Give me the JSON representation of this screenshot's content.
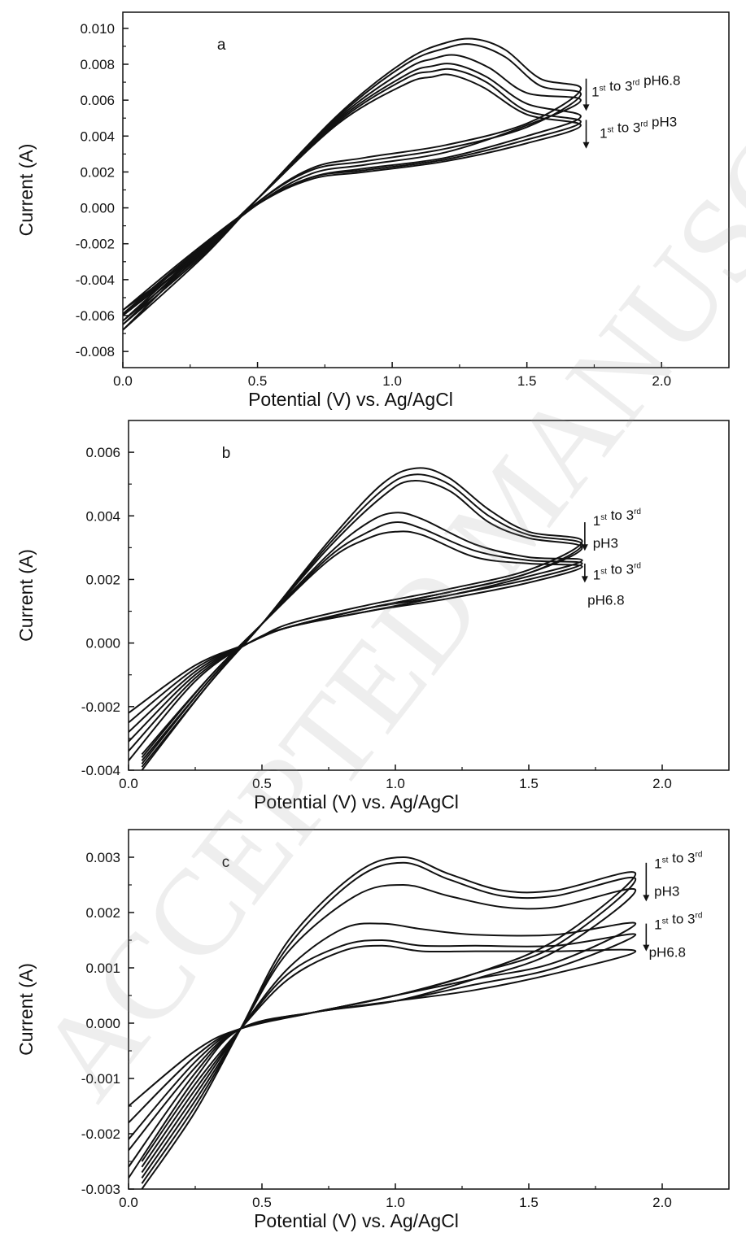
{
  "watermark": "ACCEPTED MANUSCRIPT",
  "chart_data": [
    {
      "type": "line",
      "panel_label": "a",
      "xlabel": "Potential (V) vs. Ag/AgCl",
      "ylabel": "Current (A)",
      "xlim": [
        0.0,
        2.25
      ],
      "ylim": [
        -0.0089,
        0.0109
      ],
      "xticks": [
        0.0,
        0.5,
        1.0,
        1.5,
        2.0
      ],
      "xtick_labels": [
        "0.0",
        "0.5",
        "1.0",
        "1.5",
        "2.0"
      ],
      "yticks": [
        -0.008,
        -0.006,
        -0.004,
        -0.002,
        0.0,
        0.002,
        0.004,
        0.006,
        0.008,
        0.01
      ],
      "ytick_labels": [
        "-0.008",
        "-0.006",
        "-0.004",
        "-0.002",
        "0.000",
        "0.002",
        "0.004",
        "0.006",
        "0.008",
        "0.010"
      ],
      "grid": false,
      "annotations": [
        {
          "pre": "1",
          "sup1": "st",
          "mid": " to 3",
          "sup2": "rd",
          "post": " pH6.8",
          "x": 1.74,
          "y": 0.0062
        },
        {
          "pre": "1",
          "sup1": "st",
          "mid": " to 3",
          "sup2": "rd",
          "post": " pH3",
          "x": 1.77,
          "y": 0.0039
        }
      ],
      "arrows": [
        {
          "x": 1.72,
          "y_from": 0.0072,
          "y_to": 0.0054
        },
        {
          "x": 1.72,
          "y_from": 0.0049,
          "y_to": 0.0033
        }
      ],
      "series": [
        {
          "x": [
            0.0,
            0.3,
            0.5,
            0.8,
            1.05,
            1.2,
            1.31,
            1.42,
            1.55,
            1.7,
            1.5,
            1.2,
            0.9,
            0.7,
            0.5,
            0.25,
            0.0
          ],
          "y": [
            -0.0068,
            -0.0027,
            0.0005,
            0.0052,
            0.0082,
            0.0092,
            0.0094,
            0.0088,
            0.0072,
            0.0066,
            0.0047,
            0.0035,
            0.0028,
            0.0022,
            0.0003,
            -0.0031,
            -0.0068
          ]
        },
        {
          "x": [
            0.0,
            0.3,
            0.5,
            0.8,
            1.05,
            1.2,
            1.3,
            1.42,
            1.55,
            1.7,
            1.5,
            1.2,
            0.9,
            0.7,
            0.5,
            0.25,
            0.0
          ],
          "y": [
            -0.0065,
            -0.0026,
            0.0005,
            0.0051,
            0.008,
            0.0089,
            0.0091,
            0.0084,
            0.0068,
            0.0063,
            0.0045,
            0.0033,
            0.0026,
            0.0021,
            0.0003,
            -0.003,
            -0.0065
          ]
        },
        {
          "x": [
            0.0,
            0.3,
            0.5,
            0.8,
            1.05,
            1.15,
            1.24,
            1.36,
            1.5,
            1.7,
            1.5,
            1.2,
            0.9,
            0.7,
            0.5,
            0.25,
            0.0
          ],
          "y": [
            -0.0063,
            -0.0025,
            0.0005,
            0.005,
            0.0077,
            0.0083,
            0.0085,
            0.0078,
            0.0064,
            0.006,
            0.0046,
            0.0031,
            0.0024,
            0.0019,
            0.0002,
            -0.0029,
            -0.0063
          ]
        },
        {
          "x": [
            0.0,
            0.3,
            0.5,
            0.8,
            1.05,
            1.15,
            1.23,
            1.35,
            1.5,
            1.7,
            1.5,
            1.2,
            0.9,
            0.7,
            0.5,
            0.25,
            0.0
          ],
          "y": [
            -0.006,
            -0.0024,
            0.0005,
            0.0049,
            0.0074,
            0.0079,
            0.008,
            0.0073,
            0.0058,
            0.0051,
            0.004,
            0.0028,
            0.0022,
            0.0017,
            0.0002,
            -0.0028,
            -0.006
          ]
        },
        {
          "x": [
            0.0,
            0.3,
            0.5,
            0.8,
            1.05,
            1.15,
            1.23,
            1.35,
            1.5,
            1.7,
            1.5,
            1.2,
            0.9,
            0.7,
            0.5,
            0.25,
            0.0
          ],
          "y": [
            -0.0059,
            -0.0024,
            0.0005,
            0.0048,
            0.0072,
            0.0076,
            0.0077,
            0.007,
            0.0054,
            0.0048,
            0.0038,
            0.0027,
            0.0021,
            0.0017,
            0.0002,
            -0.0027,
            -0.0059
          ]
        },
        {
          "x": [
            0.0,
            0.3,
            0.5,
            0.8,
            1.05,
            1.15,
            1.22,
            1.34,
            1.5,
            1.7,
            1.5,
            1.2,
            0.9,
            0.7,
            0.5,
            0.25,
            0.0
          ],
          "y": [
            -0.0057,
            -0.0023,
            0.0005,
            0.0047,
            0.0069,
            0.0073,
            0.0074,
            0.0067,
            0.0052,
            0.0046,
            0.0036,
            0.0026,
            0.002,
            0.0016,
            0.0002,
            -0.0026,
            -0.0057
          ]
        }
      ]
    },
    {
      "type": "line",
      "panel_label": "b",
      "xlabel": "Potential (V) vs. Ag/AgCl",
      "ylabel": "Current (A)",
      "xlim": [
        0.0,
        2.25
      ],
      "ylim": [
        -0.004,
        0.007
      ],
      "xticks": [
        0.0,
        0.5,
        1.0,
        1.5,
        2.0
      ],
      "xtick_labels": [
        "0.0",
        "0.5",
        "1.0",
        "1.5",
        "2.0"
      ],
      "yticks": [
        -0.004,
        -0.002,
        0.0,
        0.002,
        0.004,
        0.006
      ],
      "ytick_labels": [
        "-0.004",
        "-0.002",
        "0.000",
        "0.002",
        "0.004",
        "0.006"
      ],
      "grid": false,
      "annotations": [
        {
          "pre": "1",
          "sup1": "st",
          "mid": " to 3",
          "sup2": "rd",
          "post": "",
          "x": 1.74,
          "y": 0.0037
        },
        {
          "pre": "pH3",
          "sup1": "",
          "mid": "",
          "sup2": "",
          "post": "",
          "x": 1.74,
          "y": 0.003
        },
        {
          "pre": "1",
          "sup1": "st",
          "mid": " to 3",
          "sup2": "rd",
          "post": "",
          "x": 1.74,
          "y": 0.002
        },
        {
          "pre": "pH6.8",
          "sup1": "",
          "mid": "",
          "sup2": "",
          "post": "",
          "x": 1.72,
          "y": 0.0012
        }
      ],
      "arrows": [
        {
          "x": 1.71,
          "y_from": 0.0038,
          "y_to": 0.0029
        },
        {
          "x": 1.71,
          "y_from": 0.0025,
          "y_to": 0.0019
        }
      ],
      "series": [
        {
          "x": [
            0.05,
            0.3,
            0.5,
            0.75,
            0.95,
            1.08,
            1.2,
            1.35,
            1.5,
            1.7,
            1.5,
            1.2,
            0.9,
            0.6,
            0.45,
            0.25,
            0.0
          ],
          "y": [
            -0.004,
            -0.0013,
            0.0006,
            0.0032,
            0.005,
            0.0055,
            0.0052,
            0.0042,
            0.0035,
            0.0032,
            0.0023,
            0.0017,
            0.0012,
            0.0006,
            0.0,
            -0.0007,
            -0.0022
          ]
        },
        {
          "x": [
            0.05,
            0.3,
            0.5,
            0.75,
            0.95,
            1.07,
            1.2,
            1.35,
            1.5,
            1.7,
            1.5,
            1.2,
            0.9,
            0.6,
            0.45,
            0.25,
            0.0
          ],
          "y": [
            -0.0039,
            -0.0013,
            0.0006,
            0.0031,
            0.0048,
            0.0053,
            0.005,
            0.004,
            0.0034,
            0.0031,
            0.0022,
            0.0016,
            0.0011,
            0.0005,
            0.0,
            -0.0008,
            -0.0025
          ]
        },
        {
          "x": [
            0.05,
            0.3,
            0.5,
            0.75,
            0.95,
            1.06,
            1.2,
            1.35,
            1.5,
            1.7,
            1.5,
            1.2,
            0.9,
            0.6,
            0.45,
            0.25,
            0.0
          ],
          "y": [
            -0.0038,
            -0.0012,
            0.0006,
            0.003,
            0.0046,
            0.0051,
            0.0048,
            0.0038,
            0.0033,
            0.003,
            0.0022,
            0.0016,
            0.0011,
            0.0005,
            0.0,
            -0.0009,
            -0.0028
          ]
        },
        {
          "x": [
            0.05,
            0.3,
            0.5,
            0.75,
            0.9,
            1.0,
            1.1,
            1.3,
            1.5,
            1.7,
            1.5,
            1.2,
            0.9,
            0.6,
            0.45,
            0.25,
            0.0
          ],
          "y": [
            -0.0037,
            -0.0012,
            0.0006,
            0.0028,
            0.0038,
            0.0041,
            0.0039,
            0.0031,
            0.0027,
            0.0026,
            0.0021,
            0.0015,
            0.0011,
            0.0005,
            0.0,
            -0.001,
            -0.0031
          ]
        },
        {
          "x": [
            0.05,
            0.3,
            0.5,
            0.75,
            0.9,
            1.0,
            1.1,
            1.3,
            1.5,
            1.7,
            1.5,
            1.2,
            0.9,
            0.6,
            0.45,
            0.25,
            0.0
          ],
          "y": [
            -0.0036,
            -0.0011,
            0.0006,
            0.0027,
            0.0035,
            0.0038,
            0.0036,
            0.0029,
            0.0026,
            0.0025,
            0.002,
            0.0015,
            0.001,
            0.0005,
            0.0,
            -0.0011,
            -0.0034
          ]
        },
        {
          "x": [
            0.05,
            0.3,
            0.5,
            0.75,
            0.9,
            1.0,
            1.1,
            1.3,
            1.5,
            1.7,
            1.5,
            1.2,
            0.9,
            0.6,
            0.45,
            0.25,
            0.0
          ],
          "y": [
            -0.0035,
            -0.0011,
            0.0006,
            0.0026,
            0.0033,
            0.0035,
            0.0034,
            0.0027,
            0.0025,
            0.0024,
            0.0019,
            0.0014,
            0.001,
            0.0005,
            0.0,
            -0.0012,
            -0.0037
          ]
        }
      ]
    },
    {
      "type": "line",
      "panel_label": "c",
      "xlabel": "Potential (V) vs. Ag/AgCl",
      "ylabel": "Current (A)",
      "xlim": [
        0.0,
        2.25
      ],
      "ylim": [
        -0.003,
        0.0035
      ],
      "xticks": [
        0.0,
        0.5,
        1.0,
        1.5,
        2.0
      ],
      "xtick_labels": [
        "0.0",
        "0.5",
        "1.0",
        "1.5",
        "2.0"
      ],
      "yticks": [
        -0.003,
        -0.002,
        -0.001,
        0.0,
        0.001,
        0.002,
        0.003
      ],
      "ytick_labels": [
        "-0.003",
        "-0.002",
        "-0.001",
        "0.000",
        "0.001",
        "0.002",
        "0.003"
      ],
      "grid": false,
      "annotations": [
        {
          "pre": "1",
          "sup1": "st",
          "mid": " to 3",
          "sup2": "rd",
          "post": "",
          "x": 1.97,
          "y": 0.0028
        },
        {
          "pre": "pH3",
          "sup1": "",
          "mid": "",
          "sup2": "",
          "post": "",
          "x": 1.97,
          "y": 0.0023
        },
        {
          "pre": "1",
          "sup1": "st",
          "mid": " to 3",
          "sup2": "rd",
          "post": "",
          "x": 1.97,
          "y": 0.0017
        },
        {
          "pre": "pH6.8",
          "sup1": "",
          "mid": "",
          "sup2": "",
          "post": "",
          "x": 1.95,
          "y": 0.0012
        }
      ],
      "arrows": [
        {
          "x": 1.94,
          "y_from": 0.0029,
          "y_to": 0.0022
        },
        {
          "x": 1.94,
          "y_from": 0.0018,
          "y_to": 0.0013
        }
      ],
      "series": [
        {
          "x": [
            0.05,
            0.25,
            0.42,
            0.6,
            0.85,
            1.03,
            1.2,
            1.4,
            1.6,
            1.9,
            1.6,
            1.3,
            1.0,
            0.7,
            0.42,
            0.25,
            0.0
          ],
          "y": [
            -0.003,
            -0.0016,
            -0.0001,
            0.0015,
            0.0027,
            0.003,
            0.0027,
            0.0024,
            0.0024,
            0.0027,
            0.0015,
            0.0009,
            0.0005,
            0.0002,
            -0.0001,
            -0.0005,
            -0.0015
          ]
        },
        {
          "x": [
            0.05,
            0.25,
            0.42,
            0.6,
            0.85,
            1.03,
            1.2,
            1.4,
            1.6,
            1.9,
            1.6,
            1.3,
            1.0,
            0.7,
            0.42,
            0.25,
            0.0
          ],
          "y": [
            -0.0029,
            -0.0015,
            -0.0001,
            0.0014,
            0.0026,
            0.0029,
            0.0026,
            0.0023,
            0.0023,
            0.0026,
            0.0014,
            0.0009,
            0.0005,
            0.0002,
            -0.0001,
            -0.0006,
            -0.0018
          ]
        },
        {
          "x": [
            0.05,
            0.25,
            0.42,
            0.6,
            0.85,
            1.03,
            1.2,
            1.4,
            1.6,
            1.9,
            1.6,
            1.3,
            1.0,
            0.7,
            0.42,
            0.25,
            0.0
          ],
          "y": [
            -0.0028,
            -0.0014,
            -0.0001,
            0.0013,
            0.0023,
            0.0025,
            0.0023,
            0.0021,
            0.0021,
            0.0024,
            0.0013,
            0.0008,
            0.0004,
            0.0002,
            -0.0001,
            -0.0007,
            -0.0021
          ]
        },
        {
          "x": [
            0.05,
            0.25,
            0.42,
            0.6,
            0.8,
            0.95,
            1.1,
            1.3,
            1.6,
            1.9,
            1.6,
            1.3,
            1.0,
            0.7,
            0.42,
            0.25,
            0.0
          ],
          "y": [
            -0.0027,
            -0.0013,
            -0.0001,
            0.001,
            0.0017,
            0.0018,
            0.0017,
            0.0016,
            0.0016,
            0.0018,
            0.0011,
            0.0008,
            0.0005,
            0.0002,
            -0.0001,
            -0.0008,
            -0.0023
          ]
        },
        {
          "x": [
            0.05,
            0.25,
            0.42,
            0.6,
            0.8,
            0.95,
            1.1,
            1.3,
            1.6,
            1.9,
            1.6,
            1.3,
            1.0,
            0.7,
            0.42,
            0.25,
            0.0
          ],
          "y": [
            -0.0026,
            -0.0012,
            -0.0001,
            0.0009,
            0.0014,
            0.0015,
            0.0014,
            0.0014,
            0.0014,
            0.0016,
            0.001,
            0.0007,
            0.0004,
            0.0002,
            -0.0001,
            -0.0009,
            -0.0026
          ]
        },
        {
          "x": [
            0.05,
            0.25,
            0.42,
            0.6,
            0.8,
            0.95,
            1.1,
            1.3,
            1.6,
            1.9,
            1.6,
            1.3,
            1.0,
            0.7,
            0.42,
            0.25,
            0.0
          ],
          "y": [
            -0.0025,
            -0.0011,
            -0.0001,
            0.0008,
            0.0013,
            0.0014,
            0.0013,
            0.0013,
            0.0013,
            0.0013,
            0.0009,
            0.0006,
            0.0004,
            0.0002,
            -0.0001,
            -0.001,
            -0.0028
          ]
        }
      ]
    }
  ]
}
